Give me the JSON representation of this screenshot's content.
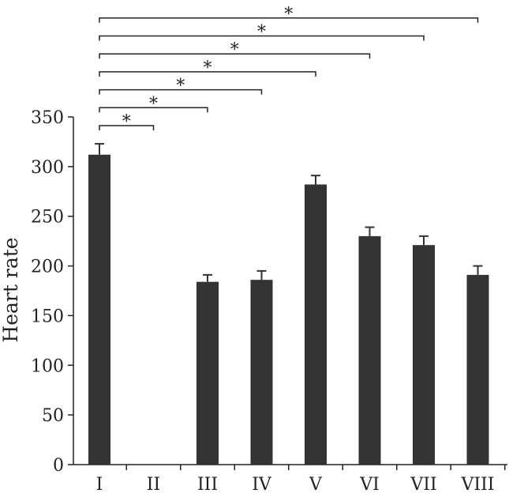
{
  "chart_data": {
    "type": "bar",
    "ylabel": "Heart rate",
    "categories": [
      "I",
      "II",
      "III",
      "IV",
      "V",
      "VI",
      "VII",
      "VIII"
    ],
    "values": [
      312,
      0,
      184,
      186,
      282,
      230,
      221,
      191
    ],
    "errors": [
      11,
      0,
      7,
      9,
      9,
      9,
      9,
      9
    ],
    "ylim": [
      0,
      350
    ],
    "yticks": [
      "0",
      "50",
      "100",
      "150",
      "200",
      "250",
      "300",
      "350"
    ],
    "bar_color": "#333333",
    "significance": [
      {
        "from": "I",
        "to": "II",
        "label": "*"
      },
      {
        "from": "I",
        "to": "III",
        "label": "*"
      },
      {
        "from": "I",
        "to": "IV",
        "label": "*"
      },
      {
        "from": "I",
        "to": "V",
        "label": "*"
      },
      {
        "from": "I",
        "to": "VI",
        "label": "*"
      },
      {
        "from": "I",
        "to": "VII",
        "label": "*"
      },
      {
        "from": "I",
        "to": "VIII",
        "label": "*"
      }
    ]
  }
}
